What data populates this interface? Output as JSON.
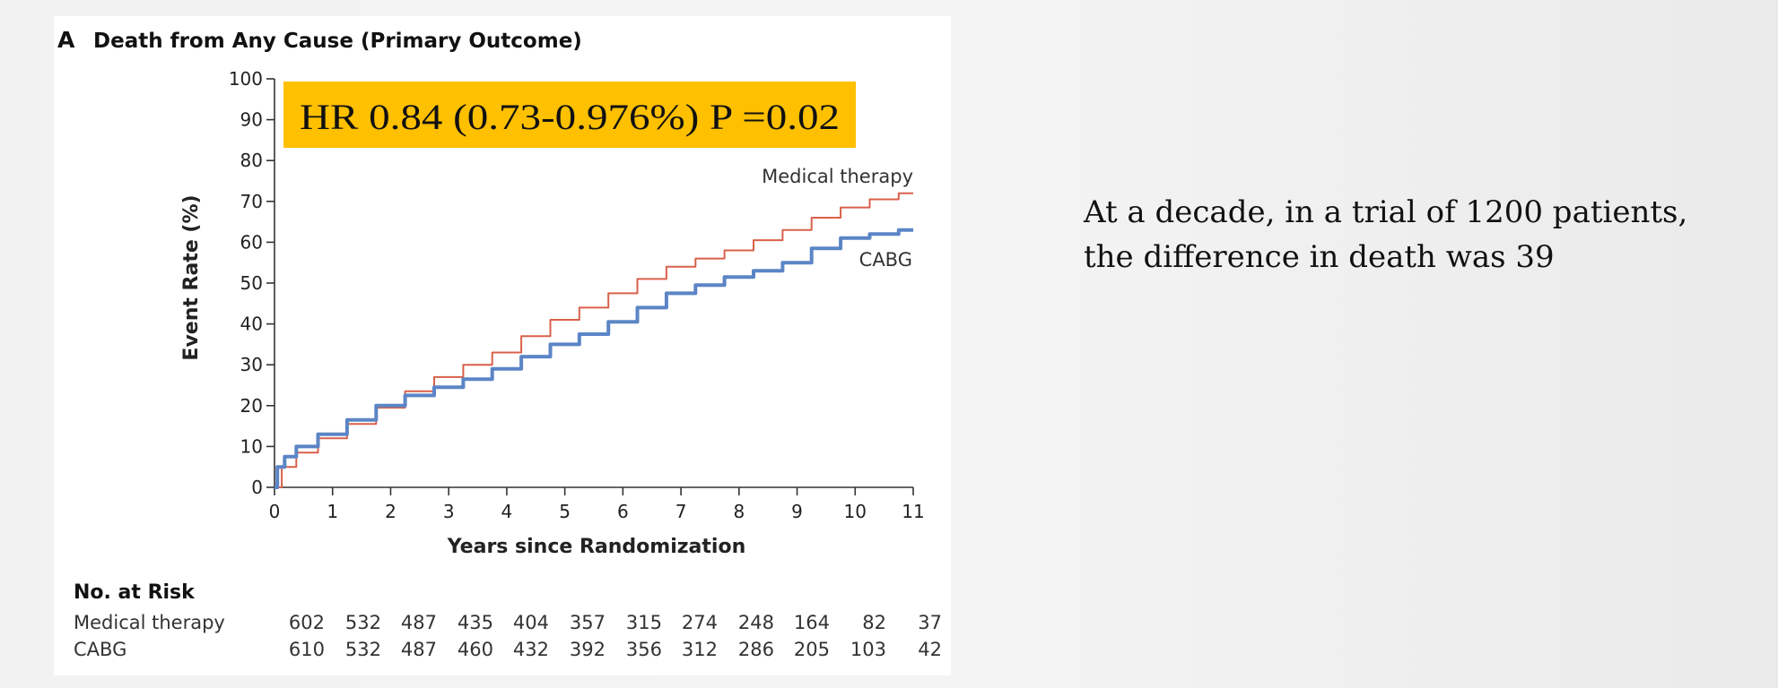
{
  "panel": {
    "letter": "A",
    "title": "Death from Any Cause (Primary Outcome)"
  },
  "hr_box": {
    "text": "HR 0.84 (0.73-0.976%) P =0.02",
    "color": "#ffc000"
  },
  "annotation": {
    "line1": "At a decade, in a trial of 1200 patients,",
    "line2": "the difference in death was 39"
  },
  "chart_data": {
    "type": "line",
    "title": "Death from Any Cause (Primary Outcome)",
    "xlabel": "Years since Randomization",
    "ylabel": "Event Rate (%)",
    "xlim": [
      0,
      11
    ],
    "ylim": [
      0,
      100
    ],
    "x_ticks": [
      "0",
      "1",
      "2",
      "3",
      "4",
      "5",
      "6",
      "7",
      "8",
      "9",
      "10",
      "11"
    ],
    "y_ticks": [
      "0",
      "10",
      "20",
      "30",
      "40",
      "50",
      "60",
      "70",
      "80",
      "90",
      "100"
    ],
    "grid": false,
    "series": [
      {
        "name": "Medical therapy",
        "color": "#d9604a",
        "x": [
          0,
          0.25,
          0.5,
          1,
          1.5,
          2,
          2.5,
          3,
          3.5,
          4,
          4.5,
          5,
          5.5,
          6,
          6.5,
          7,
          7.5,
          8,
          8.5,
          9,
          9.5,
          10,
          10.5,
          11
        ],
        "y": [
          0,
          5,
          8.5,
          12,
          15.5,
          19.5,
          23.5,
          27,
          30,
          33,
          37,
          41,
          44,
          47.5,
          51,
          54,
          56,
          58,
          60.5,
          63,
          66,
          68.5,
          70.5,
          72
        ]
      },
      {
        "name": "CABG",
        "color": "#5b85c6",
        "x": [
          0,
          0.1,
          0.25,
          0.5,
          1,
          1.5,
          2,
          2.5,
          3,
          3.5,
          4,
          4.5,
          5,
          5.5,
          6,
          6.5,
          7,
          7.5,
          8,
          8.5,
          9,
          9.5,
          10,
          10.5,
          11
        ],
        "y": [
          0,
          5,
          7.5,
          10,
          13,
          16.5,
          20,
          22.5,
          24.5,
          26.5,
          29,
          32,
          35,
          37.5,
          40.5,
          44,
          47.5,
          49.5,
          51.5,
          53,
          55,
          58.5,
          61,
          62,
          63
        ]
      }
    ],
    "risk_table": {
      "header": "No. at Risk",
      "rows": [
        {
          "label": "Medical therapy",
          "values": [
            "602",
            "532",
            "487",
            "435",
            "404",
            "357",
            "315",
            "274",
            "248",
            "164",
            "82",
            "37"
          ]
        },
        {
          "label": "CABG",
          "values": [
            "610",
            "532",
            "487",
            "460",
            "432",
            "392",
            "356",
            "312",
            "286",
            "205",
            "103",
            "42"
          ]
        }
      ]
    }
  }
}
